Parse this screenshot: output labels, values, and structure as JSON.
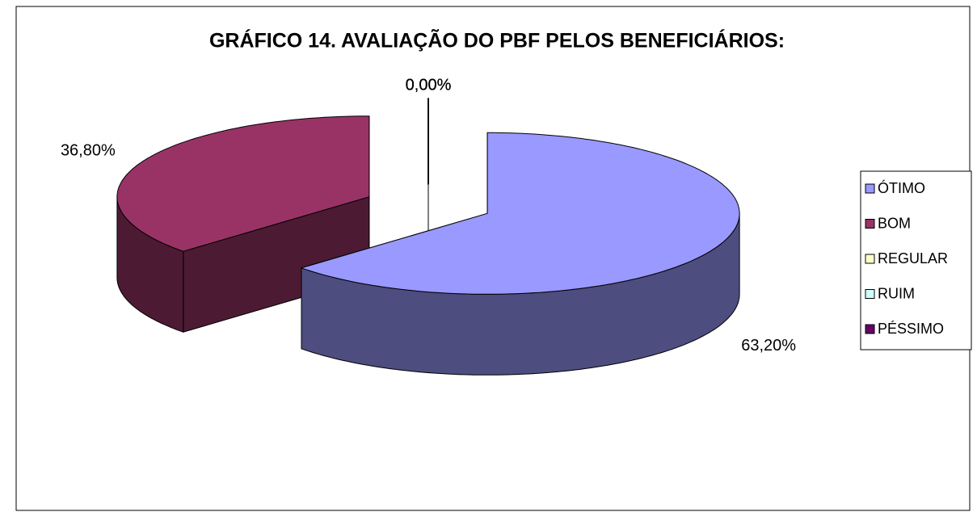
{
  "chart_data": {
    "type": "pie3d",
    "title": "GRÁFICO 14. AVALIAÇÃO DO PBF PELOS BENEFICIÁRIOS:",
    "categories": [
      "ÓTIMO",
      "BOM",
      "REGULAR",
      "RUIM",
      "PÉSSIMO"
    ],
    "values": [
      63.2,
      36.8,
      0,
      0,
      0
    ],
    "value_labels": [
      "63,20%",
      "36,80%",
      "0,00%",
      "0,00%",
      "0,00%"
    ],
    "colors": [
      "#9999ff",
      "#993366",
      "#ffffcc",
      "#ccffff",
      "#660066"
    ],
    "legend": "right"
  }
}
